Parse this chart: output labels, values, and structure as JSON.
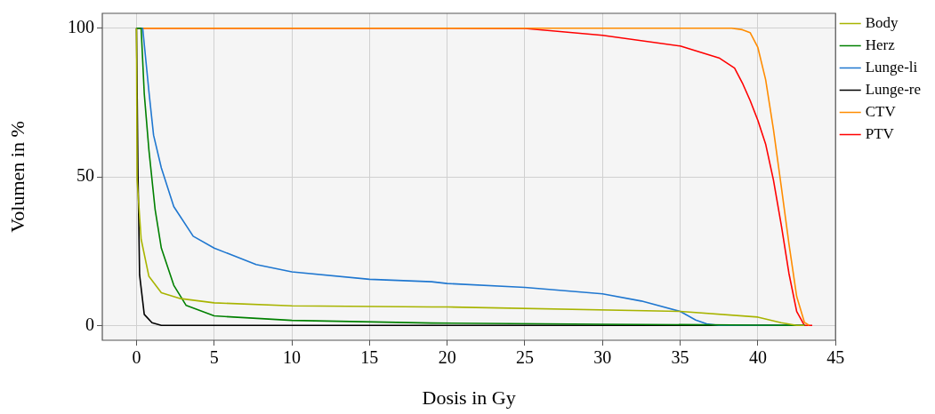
{
  "chart_data": {
    "type": "line",
    "xlabel": "Dosis in Gy",
    "ylabel": "Volumen in %",
    "xlim": [
      -2.2,
      45
    ],
    "ylim": [
      -5,
      105
    ],
    "xticks": [
      0,
      5,
      10,
      15,
      20,
      25,
      30,
      35,
      40,
      45
    ],
    "yticks": [
      0,
      50,
      100
    ],
    "grid": true,
    "legend": "top right",
    "marker": "none",
    "line_style": "solid",
    "series": [
      {
        "name": "Body",
        "color": "#a8b400",
        "x": [
          0,
          0.04,
          0.3,
          0.8,
          1.6,
          2.85,
          5,
          10,
          19,
          20,
          35,
          40,
          41.5,
          42.5,
          43
        ],
        "values": [
          100,
          49,
          29,
          16.5,
          11,
          9,
          7.6,
          6.6,
          6.2,
          6.2,
          4.7,
          2.8,
          0.9,
          0,
          0
        ]
      },
      {
        "name": "Herz",
        "color": "#008000",
        "x": [
          0,
          0.3,
          0.5,
          0.8,
          1.2,
          1.6,
          2.4,
          3.2,
          5,
          10,
          19,
          30,
          40,
          43
        ],
        "values": [
          100,
          100,
          78,
          59,
          39,
          26,
          13.5,
          6.7,
          3.2,
          1.7,
          0.8,
          0.4,
          0.1,
          0
        ]
      },
      {
        "name": "Lunge-li",
        "color": "#1f77d0",
        "x": [
          0,
          0.4,
          0.8,
          1.1,
          1.6,
          2.4,
          3.65,
          5,
          7.7,
          10,
          15,
          19,
          20,
          25,
          30,
          32.5,
          35,
          36,
          36.7,
          37.5,
          43
        ],
        "values": [
          100,
          100,
          78.7,
          64,
          53,
          40,
          30,
          26,
          20.5,
          18,
          15.5,
          14.7,
          14.1,
          12.8,
          10.6,
          8.2,
          4.7,
          1.8,
          0.5,
          0,
          0
        ]
      },
      {
        "name": "Lunge-re",
        "color": "#000000",
        "x": [
          0,
          0.1,
          0.2,
          0.5,
          1,
          1.6,
          43
        ],
        "values": [
          100,
          50,
          17,
          3.7,
          0.9,
          0,
          0
        ]
      },
      {
        "name": "CTV",
        "color": "#ff8c00",
        "x": [
          0,
          38.3,
          39,
          39.5,
          40,
          40.5,
          41,
          41.5,
          42,
          42.5,
          43,
          43.3
        ],
        "values": [
          100,
          100,
          99.5,
          98.5,
          93.5,
          82.7,
          66,
          47,
          27.5,
          9.7,
          1,
          0
        ]
      },
      {
        "name": "PTV",
        "color": "#ff0000",
        "x": [
          0,
          20,
          25,
          30,
          35,
          37.5,
          38.5,
          39,
          39.5,
          40,
          40.5,
          41,
          41.5,
          42,
          42.5,
          43,
          43.5
        ],
        "values": [
          100,
          100,
          99.9,
          97.6,
          94,
          90,
          86.6,
          81.6,
          75.7,
          69,
          61,
          49,
          34,
          17.5,
          4.7,
          0,
          0
        ]
      }
    ]
  }
}
